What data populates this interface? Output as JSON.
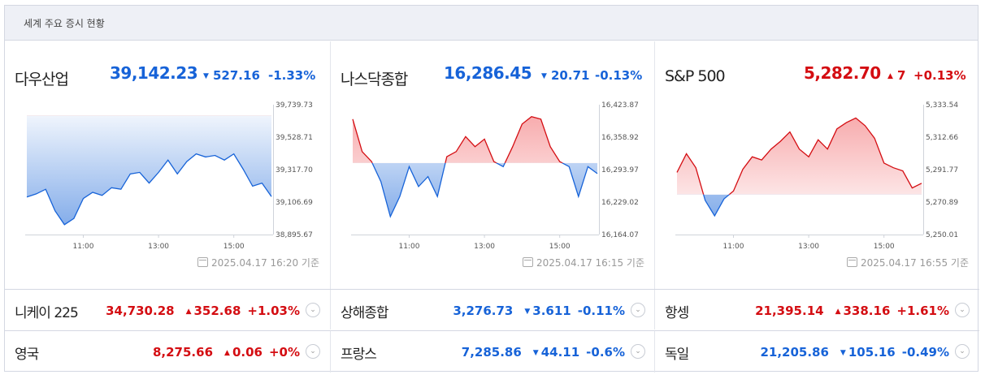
{
  "widget": {
    "title": "세계 주요 증시 현황"
  },
  "colors": {
    "up": "#d40d12",
    "down": "#1763d8",
    "up_fill": "#f7a8aa",
    "down_fill": "#7ea9e9"
  },
  "cards": [
    {
      "name": "다우산업",
      "value": "39,142.23",
      "direction": "down",
      "arrow": "▼",
      "change": "527.16",
      "pct": "-1.33%",
      "basis": "2025.04.17 16:20 기준",
      "chart_data": {
        "type": "line",
        "y_ticks": [
          "39,739.73",
          "39,528.71",
          "39,317.70",
          "39,106.69",
          "38,895.67"
        ],
        "x_ticks": [
          "11:00",
          "13:00",
          "15:00"
        ],
        "ylim": [
          38895.67,
          39739.73
        ],
        "baseline": 39669.39,
        "series": [
          {
            "x": [
              9.5,
              9.75,
              10.0,
              10.25,
              10.5,
              10.75,
              11.0,
              11.25,
              11.5,
              11.75,
              12.0,
              12.25,
              12.5,
              12.75,
              13.0,
              13.25,
              13.5,
              13.75,
              14.0,
              14.25,
              14.5,
              14.75,
              15.0,
              15.25,
              15.5,
              15.75,
              16.0
            ],
            "y": [
              39140,
              39160,
              39190,
              39050,
              38960,
              39000,
              39130,
              39170,
              39150,
              39200,
              39190,
              39290,
              39300,
              39230,
              39300,
              39380,
              39290,
              39370,
              39420,
              39400,
              39410,
              39380,
              39420,
              39320,
              39210,
              39230,
              39142
            ]
          }
        ]
      }
    },
    {
      "name": "나스닥종합",
      "value": "16,286.45",
      "direction": "down",
      "arrow": "▼",
      "change": "20.71",
      "pct": "-0.13%",
      "basis": "2025.04.17 16:15 기준",
      "chart_data": {
        "type": "line",
        "y_ticks": [
          "16,423.87",
          "16,358.92",
          "16,293.97",
          "16,229.02",
          "16,164.07"
        ],
        "x_ticks": [
          "11:00",
          "13:00",
          "15:00"
        ],
        "ylim": [
          16164.07,
          16423.87
        ],
        "baseline": 16307.16,
        "series": [
          {
            "x": [
              9.5,
              9.75,
              10.0,
              10.25,
              10.5,
              10.75,
              11.0,
              11.25,
              11.5,
              11.75,
              12.0,
              12.25,
              12.5,
              12.75,
              13.0,
              13.25,
              13.5,
              13.75,
              14.0,
              14.25,
              14.5,
              14.75,
              15.0,
              15.25,
              15.5,
              15.75,
              16.0
            ],
            "y": [
              16395,
              16330,
              16310,
              16270,
              16200,
              16240,
              16300,
              16260,
              16280,
              16240,
              16320,
              16330,
              16360,
              16340,
              16355,
              16310,
              16300,
              16340,
              16385,
              16400,
              16395,
              16340,
              16310,
              16300,
              16240,
              16300,
              16286
            ]
          }
        ]
      }
    },
    {
      "name": "S&P 500",
      "value": "5,282.70",
      "direction": "up",
      "arrow": "▲",
      "change": "7",
      "pct": "+0.13%",
      "basis": "2025.04.17 16:55 기준",
      "chart_data": {
        "type": "line",
        "y_ticks": [
          "5,333.54",
          "5,312.66",
          "5,291.77",
          "5,270.89",
          "5,250.01"
        ],
        "x_ticks": [
          "11:00",
          "13:00",
          "15:00"
        ],
        "ylim": [
          5250.01,
          5333.54
        ],
        "baseline": 5275.7,
        "series": [
          {
            "x": [
              9.5,
              9.75,
              10.0,
              10.25,
              10.5,
              10.75,
              11.0,
              11.25,
              11.5,
              11.75,
              12.0,
              12.25,
              12.5,
              12.75,
              13.0,
              13.25,
              13.5,
              13.75,
              14.0,
              14.25,
              14.5,
              14.75,
              15.0,
              15.25,
              15.5,
              15.75,
              16.0
            ],
            "y": [
              5290,
              5302,
              5293,
              5272,
              5262,
              5273,
              5278,
              5292,
              5300,
              5298,
              5305,
              5310,
              5316,
              5305,
              5300,
              5311,
              5305,
              5318,
              5322,
              5325,
              5320,
              5312,
              5296,
              5293,
              5291,
              5280,
              5283
            ]
          }
        ]
      }
    }
  ],
  "rows": [
    [
      {
        "name": "니케이 225",
        "value": "34,730.28",
        "direction": "up",
        "arrow": "▲",
        "change": "352.68",
        "pct": "+1.03%"
      },
      {
        "name": "상해종합",
        "value": "3,276.73",
        "direction": "down",
        "arrow": "▼",
        "change": "3.611",
        "pct": "-0.11%"
      },
      {
        "name": "항셍",
        "value": "21,395.14",
        "direction": "up",
        "arrow": "▲",
        "change": "338.16",
        "pct": "+1.61%"
      }
    ],
    [
      {
        "name": "영국",
        "value": "8,275.66",
        "direction": "up",
        "arrow": "▲",
        "change": "0.06",
        "pct": "+0%"
      },
      {
        "name": "프랑스",
        "value": "7,285.86",
        "direction": "down",
        "arrow": "▼",
        "change": "44.11",
        "pct": "-0.6%"
      },
      {
        "name": "독일",
        "value": "21,205.86",
        "direction": "down",
        "arrow": "▼",
        "change": "105.16",
        "pct": "-0.49%"
      }
    ]
  ],
  "icons": {
    "more": "chevron-down-circle-icon",
    "basis": "calendar-icon"
  }
}
